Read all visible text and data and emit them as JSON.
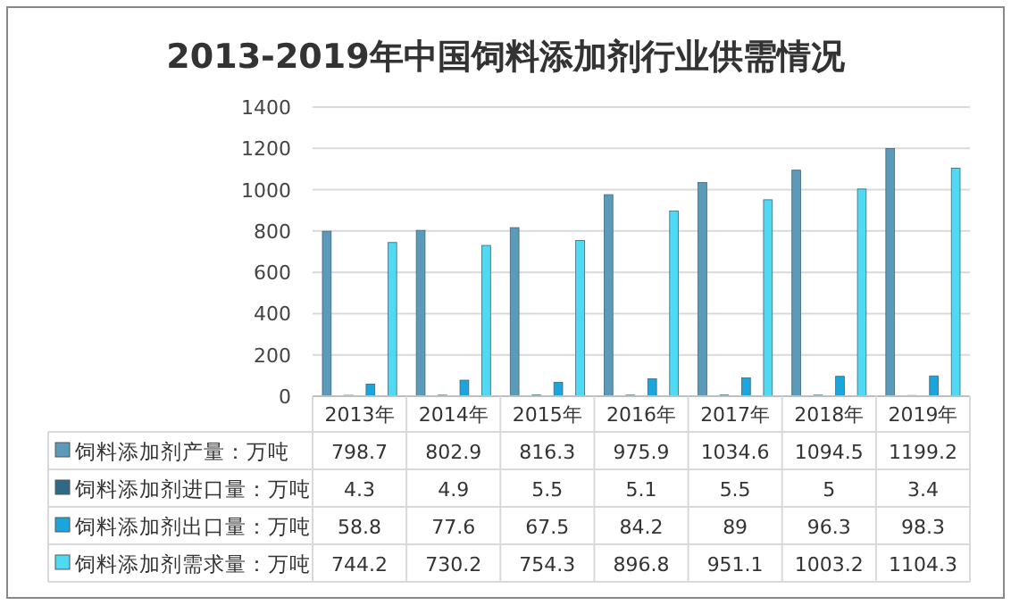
{
  "chart_data": {
    "type": "bar",
    "title": "2013-2019年中国饲料添加剂行业供需情况",
    "categories": [
      "2013年",
      "2014年",
      "2015年",
      "2016年",
      "2017年",
      "2018年",
      "2019年"
    ],
    "series": [
      {
        "name": "饲料添加剂产量：万吨",
        "color": "#5b9ab8",
        "values": [
          798.7,
          802.9,
          816.3,
          975.9,
          1034.6,
          1094.5,
          1199.2
        ]
      },
      {
        "name": "饲料添加剂进口量：万吨",
        "color": "#2e6a88",
        "values": [
          4.3,
          4.9,
          5.5,
          5.1,
          5.5,
          5,
          3.4
        ]
      },
      {
        "name": "饲料添加剂出口量：万吨",
        "color": "#1aa6dc",
        "values": [
          58.8,
          77.6,
          67.5,
          84.2,
          89,
          96.3,
          98.3
        ]
      },
      {
        "name": "饲料添加剂需求量：万吨",
        "color": "#4fd9f2",
        "values": [
          744.2,
          730.2,
          754.3,
          896.8,
          951.1,
          1003.2,
          1104.3
        ]
      }
    ],
    "ylim": [
      0,
      1400
    ],
    "yticks": [
      0,
      200,
      400,
      600,
      800,
      1000,
      1200,
      1400
    ],
    "grid": "y",
    "legend": "bottom",
    "data_labels": true
  }
}
